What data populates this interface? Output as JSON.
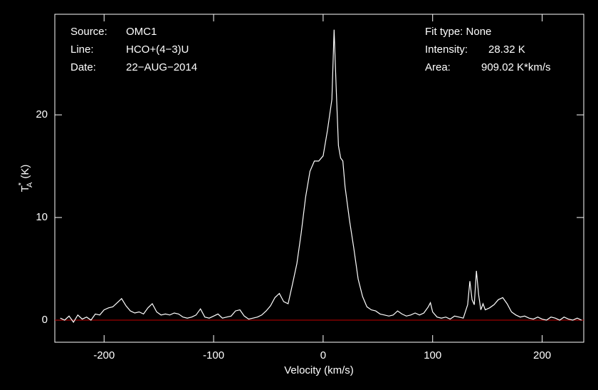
{
  "chart_data": {
    "type": "line",
    "x_label": "Velocity (km/s)",
    "y_label": {
      "main": "T",
      "sup": "*",
      "sub": "A",
      "unit": "(K)"
    },
    "annotations": [
      "Source:",
      "OMC1",
      "Line:",
      "HCO+(4−3)U",
      "Date:",
      "22−AUG−2014",
      "Fit type: None",
      "Intensity:",
      "28.32 K",
      "Area:",
      "909.02 K*km/s"
    ],
    "xlim": [
      -245,
      238
    ],
    "ylim": [
      -2.15,
      29.8
    ],
    "xticks": [
      -200,
      -100,
      0,
      100,
      200
    ],
    "yticks": [
      0,
      10,
      20
    ],
    "reference_line": {
      "value": 0,
      "color": "#c00000"
    },
    "series": [
      {
        "color": "#ffffff",
        "x": [
          -240,
          -236,
          -232,
          -228,
          -224,
          -220,
          -216,
          -212,
          -208,
          -204,
          -200,
          -196,
          -192,
          -188,
          -184,
          -180,
          -176,
          -172,
          -168,
          -164,
          -160,
          -156,
          -152,
          -148,
          -144,
          -140,
          -136,
          -132,
          -128,
          -124,
          -120,
          -116,
          -112,
          -108,
          -104,
          -100,
          -96,
          -92,
          -88,
          -84,
          -80,
          -76,
          -72,
          -68,
          -64,
          -60,
          -56,
          -52,
          -48,
          -44,
          -40,
          -36,
          -32,
          -28,
          -24,
          -20,
          -16,
          -12,
          -8,
          -4,
          0,
          4,
          8,
          10,
          12,
          14,
          16,
          18,
          20,
          24,
          28,
          32,
          36,
          40,
          44,
          48,
          52,
          56,
          60,
          64,
          68,
          72,
          76,
          80,
          84,
          88,
          92,
          96,
          98,
          100,
          104,
          108,
          112,
          116,
          120,
          124,
          128,
          132,
          134,
          136,
          138,
          140,
          142,
          144,
          146,
          148,
          152,
          156,
          160,
          164,
          168,
          172,
          176,
          180,
          184,
          188,
          192,
          196,
          200,
          204,
          208,
          212,
          216,
          220,
          224,
          228,
          232,
          236
        ],
        "values": [
          0.2,
          0.0,
          0.4,
          -0.2,
          0.5,
          0.1,
          0.3,
          0.0,
          0.6,
          0.5,
          1.0,
          1.2,
          1.3,
          1.7,
          2.1,
          1.4,
          0.9,
          0.7,
          0.8,
          0.6,
          1.2,
          1.6,
          0.8,
          0.5,
          0.6,
          0.5,
          0.7,
          0.6,
          0.3,
          0.2,
          0.3,
          0.5,
          1.1,
          0.3,
          0.2,
          0.4,
          0.6,
          0.2,
          0.3,
          0.4,
          0.9,
          1.0,
          0.4,
          0.1,
          0.2,
          0.3,
          0.5,
          0.9,
          1.4,
          2.2,
          2.6,
          1.8,
          1.6,
          3.5,
          5.5,
          8.5,
          12,
          14.5,
          15.5,
          15.5,
          16.0,
          18.5,
          21.5,
          28.3,
          22.5,
          17,
          15.8,
          15.5,
          13,
          9.8,
          7,
          4,
          2.3,
          1.3,
          1.0,
          0.9,
          0.6,
          0.5,
          0.4,
          0.5,
          0.9,
          0.6,
          0.4,
          0.5,
          0.7,
          0.5,
          0.7,
          1.3,
          1.7,
          0.8,
          0.3,
          0.2,
          0.3,
          0.1,
          0.4,
          0.3,
          0.2,
          1.5,
          3.8,
          2.0,
          1.5,
          4.8,
          2.5,
          1.0,
          1.6,
          1.0,
          1.2,
          1.5,
          2.0,
          2.2,
          1.6,
          0.8,
          0.5,
          0.3,
          0.4,
          0.2,
          0.1,
          0.3,
          0.1,
          0.0,
          0.3,
          0.2,
          0.0,
          0.3,
          0.1,
          0.0,
          0.2,
          0.0
        ]
      }
    ]
  }
}
